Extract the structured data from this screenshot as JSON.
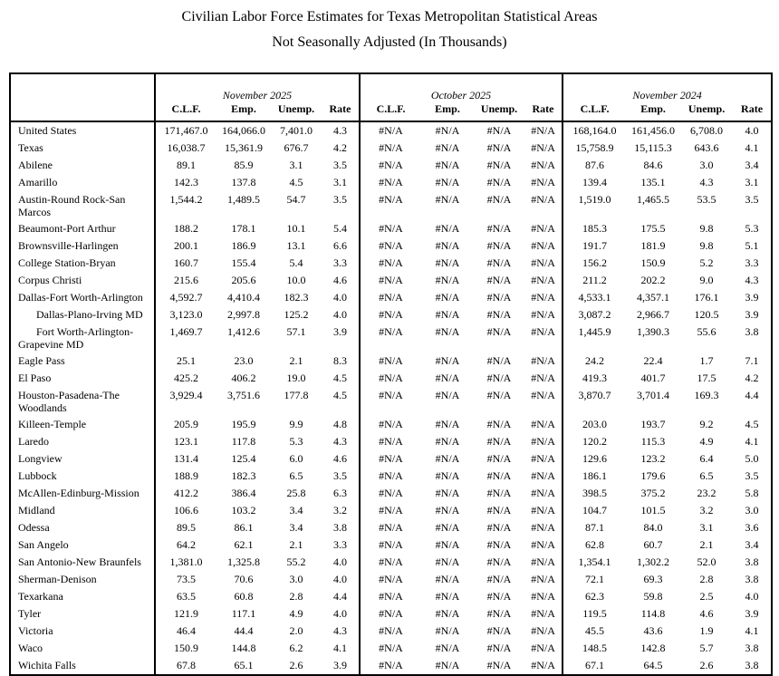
{
  "title": {
    "line1": "Civilian Labor Force Estimates for Texas Metropolitan Statistical Areas",
    "line2": "Not Seasonally Adjusted (In Thousands)"
  },
  "table": {
    "column_groups": [
      {
        "label": "November 2025",
        "columns": [
          "C.L.F.",
          "Emp.",
          "Unemp.",
          "Rate"
        ]
      },
      {
        "label": "October 2025",
        "columns": [
          "C.L.F.",
          "Emp.",
          "Unemp.",
          "Rate"
        ]
      },
      {
        "label": "November 2024",
        "columns": [
          "C.L.F.",
          "Emp.",
          "Unemp.",
          "Rate"
        ]
      }
    ],
    "na_value": "#N/A",
    "rows": [
      {
        "area": "United States",
        "indent": false,
        "nov2025": [
          "171,467.0",
          "164,066.0",
          "7,401.0",
          "4.3"
        ],
        "oct2025": [
          "#N/A",
          "#N/A",
          "#N/A",
          "#N/A"
        ],
        "nov2024": [
          "168,164.0",
          "161,456.0",
          "6,708.0",
          "4.0"
        ]
      },
      {
        "area": "Texas",
        "indent": false,
        "nov2025": [
          "16,038.7",
          "15,361.9",
          "676.7",
          "4.2"
        ],
        "oct2025": [
          "#N/A",
          "#N/A",
          "#N/A",
          "#N/A"
        ],
        "nov2024": [
          "15,758.9",
          "15,115.3",
          "643.6",
          "4.1"
        ]
      },
      {
        "area": "Abilene",
        "indent": false,
        "nov2025": [
          "89.1",
          "85.9",
          "3.1",
          "3.5"
        ],
        "oct2025": [
          "#N/A",
          "#N/A",
          "#N/A",
          "#N/A"
        ],
        "nov2024": [
          "87.6",
          "84.6",
          "3.0",
          "3.4"
        ]
      },
      {
        "area": "Amarillo",
        "indent": false,
        "nov2025": [
          "142.3",
          "137.8",
          "4.5",
          "3.1"
        ],
        "oct2025": [
          "#N/A",
          "#N/A",
          "#N/A",
          "#N/A"
        ],
        "nov2024": [
          "139.4",
          "135.1",
          "4.3",
          "3.1"
        ]
      },
      {
        "area": "Austin-Round Rock-San Marcos",
        "indent": false,
        "nov2025": [
          "1,544.2",
          "1,489.5",
          "54.7",
          "3.5"
        ],
        "oct2025": [
          "#N/A",
          "#N/A",
          "#N/A",
          "#N/A"
        ],
        "nov2024": [
          "1,519.0",
          "1,465.5",
          "53.5",
          "3.5"
        ]
      },
      {
        "area": "Beaumont-Port Arthur",
        "indent": false,
        "nov2025": [
          "188.2",
          "178.1",
          "10.1",
          "5.4"
        ],
        "oct2025": [
          "#N/A",
          "#N/A",
          "#N/A",
          "#N/A"
        ],
        "nov2024": [
          "185.3",
          "175.5",
          "9.8",
          "5.3"
        ]
      },
      {
        "area": "Brownsville-Harlingen",
        "indent": false,
        "nov2025": [
          "200.1",
          "186.9",
          "13.1",
          "6.6"
        ],
        "oct2025": [
          "#N/A",
          "#N/A",
          "#N/A",
          "#N/A"
        ],
        "nov2024": [
          "191.7",
          "181.9",
          "9.8",
          "5.1"
        ]
      },
      {
        "area": "College Station-Bryan",
        "indent": false,
        "nov2025": [
          "160.7",
          "155.4",
          "5.4",
          "3.3"
        ],
        "oct2025": [
          "#N/A",
          "#N/A",
          "#N/A",
          "#N/A"
        ],
        "nov2024": [
          "156.2",
          "150.9",
          "5.2",
          "3.3"
        ]
      },
      {
        "area": "Corpus Christi",
        "indent": false,
        "nov2025": [
          "215.6",
          "205.6",
          "10.0",
          "4.6"
        ],
        "oct2025": [
          "#N/A",
          "#N/A",
          "#N/A",
          "#N/A"
        ],
        "nov2024": [
          "211.2",
          "202.2",
          "9.0",
          "4.3"
        ]
      },
      {
        "area": "Dallas-Fort Worth-Arlington",
        "indent": false,
        "nov2025": [
          "4,592.7",
          "4,410.4",
          "182.3",
          "4.0"
        ],
        "oct2025": [
          "#N/A",
          "#N/A",
          "#N/A",
          "#N/A"
        ],
        "nov2024": [
          "4,533.1",
          "4,357.1",
          "176.1",
          "3.9"
        ]
      },
      {
        "area": "Dallas-Plano-Irving MD",
        "indent": true,
        "nov2025": [
          "3,123.0",
          "2,997.8",
          "125.2",
          "4.0"
        ],
        "oct2025": [
          "#N/A",
          "#N/A",
          "#N/A",
          "#N/A"
        ],
        "nov2024": [
          "3,087.2",
          "2,966.7",
          "120.5",
          "3.9"
        ]
      },
      {
        "area": "Fort Worth-Arlington-Grapevine MD",
        "indent": true,
        "nov2025": [
          "1,469.7",
          "1,412.6",
          "57.1",
          "3.9"
        ],
        "oct2025": [
          "#N/A",
          "#N/A",
          "#N/A",
          "#N/A"
        ],
        "nov2024": [
          "1,445.9",
          "1,390.3",
          "55.6",
          "3.8"
        ]
      },
      {
        "area": "Eagle Pass",
        "indent": false,
        "nov2025": [
          "25.1",
          "23.0",
          "2.1",
          "8.3"
        ],
        "oct2025": [
          "#N/A",
          "#N/A",
          "#N/A",
          "#N/A"
        ],
        "nov2024": [
          "24.2",
          "22.4",
          "1.7",
          "7.1"
        ]
      },
      {
        "area": "El Paso",
        "indent": false,
        "nov2025": [
          "425.2",
          "406.2",
          "19.0",
          "4.5"
        ],
        "oct2025": [
          "#N/A",
          "#N/A",
          "#N/A",
          "#N/A"
        ],
        "nov2024": [
          "419.3",
          "401.7",
          "17.5",
          "4.2"
        ]
      },
      {
        "area": "Houston-Pasadena-The Woodlands",
        "indent": false,
        "nov2025": [
          "3,929.4",
          "3,751.6",
          "177.8",
          "4.5"
        ],
        "oct2025": [
          "#N/A",
          "#N/A",
          "#N/A",
          "#N/A"
        ],
        "nov2024": [
          "3,870.7",
          "3,701.4",
          "169.3",
          "4.4"
        ]
      },
      {
        "area": "Killeen-Temple",
        "indent": false,
        "nov2025": [
          "205.9",
          "195.9",
          "9.9",
          "4.8"
        ],
        "oct2025": [
          "#N/A",
          "#N/A",
          "#N/A",
          "#N/A"
        ],
        "nov2024": [
          "203.0",
          "193.7",
          "9.2",
          "4.5"
        ]
      },
      {
        "area": "Laredo",
        "indent": false,
        "nov2025": [
          "123.1",
          "117.8",
          "5.3",
          "4.3"
        ],
        "oct2025": [
          "#N/A",
          "#N/A",
          "#N/A",
          "#N/A"
        ],
        "nov2024": [
          "120.2",
          "115.3",
          "4.9",
          "4.1"
        ]
      },
      {
        "area": "Longview",
        "indent": false,
        "nov2025": [
          "131.4",
          "125.4",
          "6.0",
          "4.6"
        ],
        "oct2025": [
          "#N/A",
          "#N/A",
          "#N/A",
          "#N/A"
        ],
        "nov2024": [
          "129.6",
          "123.2",
          "6.4",
          "5.0"
        ]
      },
      {
        "area": "Lubbock",
        "indent": false,
        "nov2025": [
          "188.9",
          "182.3",
          "6.5",
          "3.5"
        ],
        "oct2025": [
          "#N/A",
          "#N/A",
          "#N/A",
          "#N/A"
        ],
        "nov2024": [
          "186.1",
          "179.6",
          "6.5",
          "3.5"
        ]
      },
      {
        "area": "McAllen-Edinburg-Mission",
        "indent": false,
        "nov2025": [
          "412.2",
          "386.4",
          "25.8",
          "6.3"
        ],
        "oct2025": [
          "#N/A",
          "#N/A",
          "#N/A",
          "#N/A"
        ],
        "nov2024": [
          "398.5",
          "375.2",
          "23.2",
          "5.8"
        ]
      },
      {
        "area": "Midland",
        "indent": false,
        "nov2025": [
          "106.6",
          "103.2",
          "3.4",
          "3.2"
        ],
        "oct2025": [
          "#N/A",
          "#N/A",
          "#N/A",
          "#N/A"
        ],
        "nov2024": [
          "104.7",
          "101.5",
          "3.2",
          "3.0"
        ]
      },
      {
        "area": "Odessa",
        "indent": false,
        "nov2025": [
          "89.5",
          "86.1",
          "3.4",
          "3.8"
        ],
        "oct2025": [
          "#N/A",
          "#N/A",
          "#N/A",
          "#N/A"
        ],
        "nov2024": [
          "87.1",
          "84.0",
          "3.1",
          "3.6"
        ]
      },
      {
        "area": "San Angelo",
        "indent": false,
        "nov2025": [
          "64.2",
          "62.1",
          "2.1",
          "3.3"
        ],
        "oct2025": [
          "#N/A",
          "#N/A",
          "#N/A",
          "#N/A"
        ],
        "nov2024": [
          "62.8",
          "60.7",
          "2.1",
          "3.4"
        ]
      },
      {
        "area": "San Antonio-New Braunfels",
        "indent": false,
        "nov2025": [
          "1,381.0",
          "1,325.8",
          "55.2",
          "4.0"
        ],
        "oct2025": [
          "#N/A",
          "#N/A",
          "#N/A",
          "#N/A"
        ],
        "nov2024": [
          "1,354.1",
          "1,302.2",
          "52.0",
          "3.8"
        ]
      },
      {
        "area": "Sherman-Denison",
        "indent": false,
        "nov2025": [
          "73.5",
          "70.6",
          "3.0",
          "4.0"
        ],
        "oct2025": [
          "#N/A",
          "#N/A",
          "#N/A",
          "#N/A"
        ],
        "nov2024": [
          "72.1",
          "69.3",
          "2.8",
          "3.8"
        ]
      },
      {
        "area": "Texarkana",
        "indent": false,
        "nov2025": [
          "63.5",
          "60.8",
          "2.8",
          "4.4"
        ],
        "oct2025": [
          "#N/A",
          "#N/A",
          "#N/A",
          "#N/A"
        ],
        "nov2024": [
          "62.3",
          "59.8",
          "2.5",
          "4.0"
        ]
      },
      {
        "area": "Tyler",
        "indent": false,
        "nov2025": [
          "121.9",
          "117.1",
          "4.9",
          "4.0"
        ],
        "oct2025": [
          "#N/A",
          "#N/A",
          "#N/A",
          "#N/A"
        ],
        "nov2024": [
          "119.5",
          "114.8",
          "4.6",
          "3.9"
        ]
      },
      {
        "area": "Victoria",
        "indent": false,
        "nov2025": [
          "46.4",
          "44.4",
          "2.0",
          "4.3"
        ],
        "oct2025": [
          "#N/A",
          "#N/A",
          "#N/A",
          "#N/A"
        ],
        "nov2024": [
          "45.5",
          "43.6",
          "1.9",
          "4.1"
        ]
      },
      {
        "area": "Waco",
        "indent": false,
        "nov2025": [
          "150.9",
          "144.8",
          "6.2",
          "4.1"
        ],
        "oct2025": [
          "#N/A",
          "#N/A",
          "#N/A",
          "#N/A"
        ],
        "nov2024": [
          "148.5",
          "142.8",
          "5.7",
          "3.8"
        ]
      },
      {
        "area": "Wichita Falls",
        "indent": false,
        "nov2025": [
          "67.8",
          "65.1",
          "2.6",
          "3.9"
        ],
        "oct2025": [
          "#N/A",
          "#N/A",
          "#N/A",
          "#N/A"
        ],
        "nov2024": [
          "67.1",
          "64.5",
          "2.6",
          "3.8"
        ]
      }
    ]
  }
}
